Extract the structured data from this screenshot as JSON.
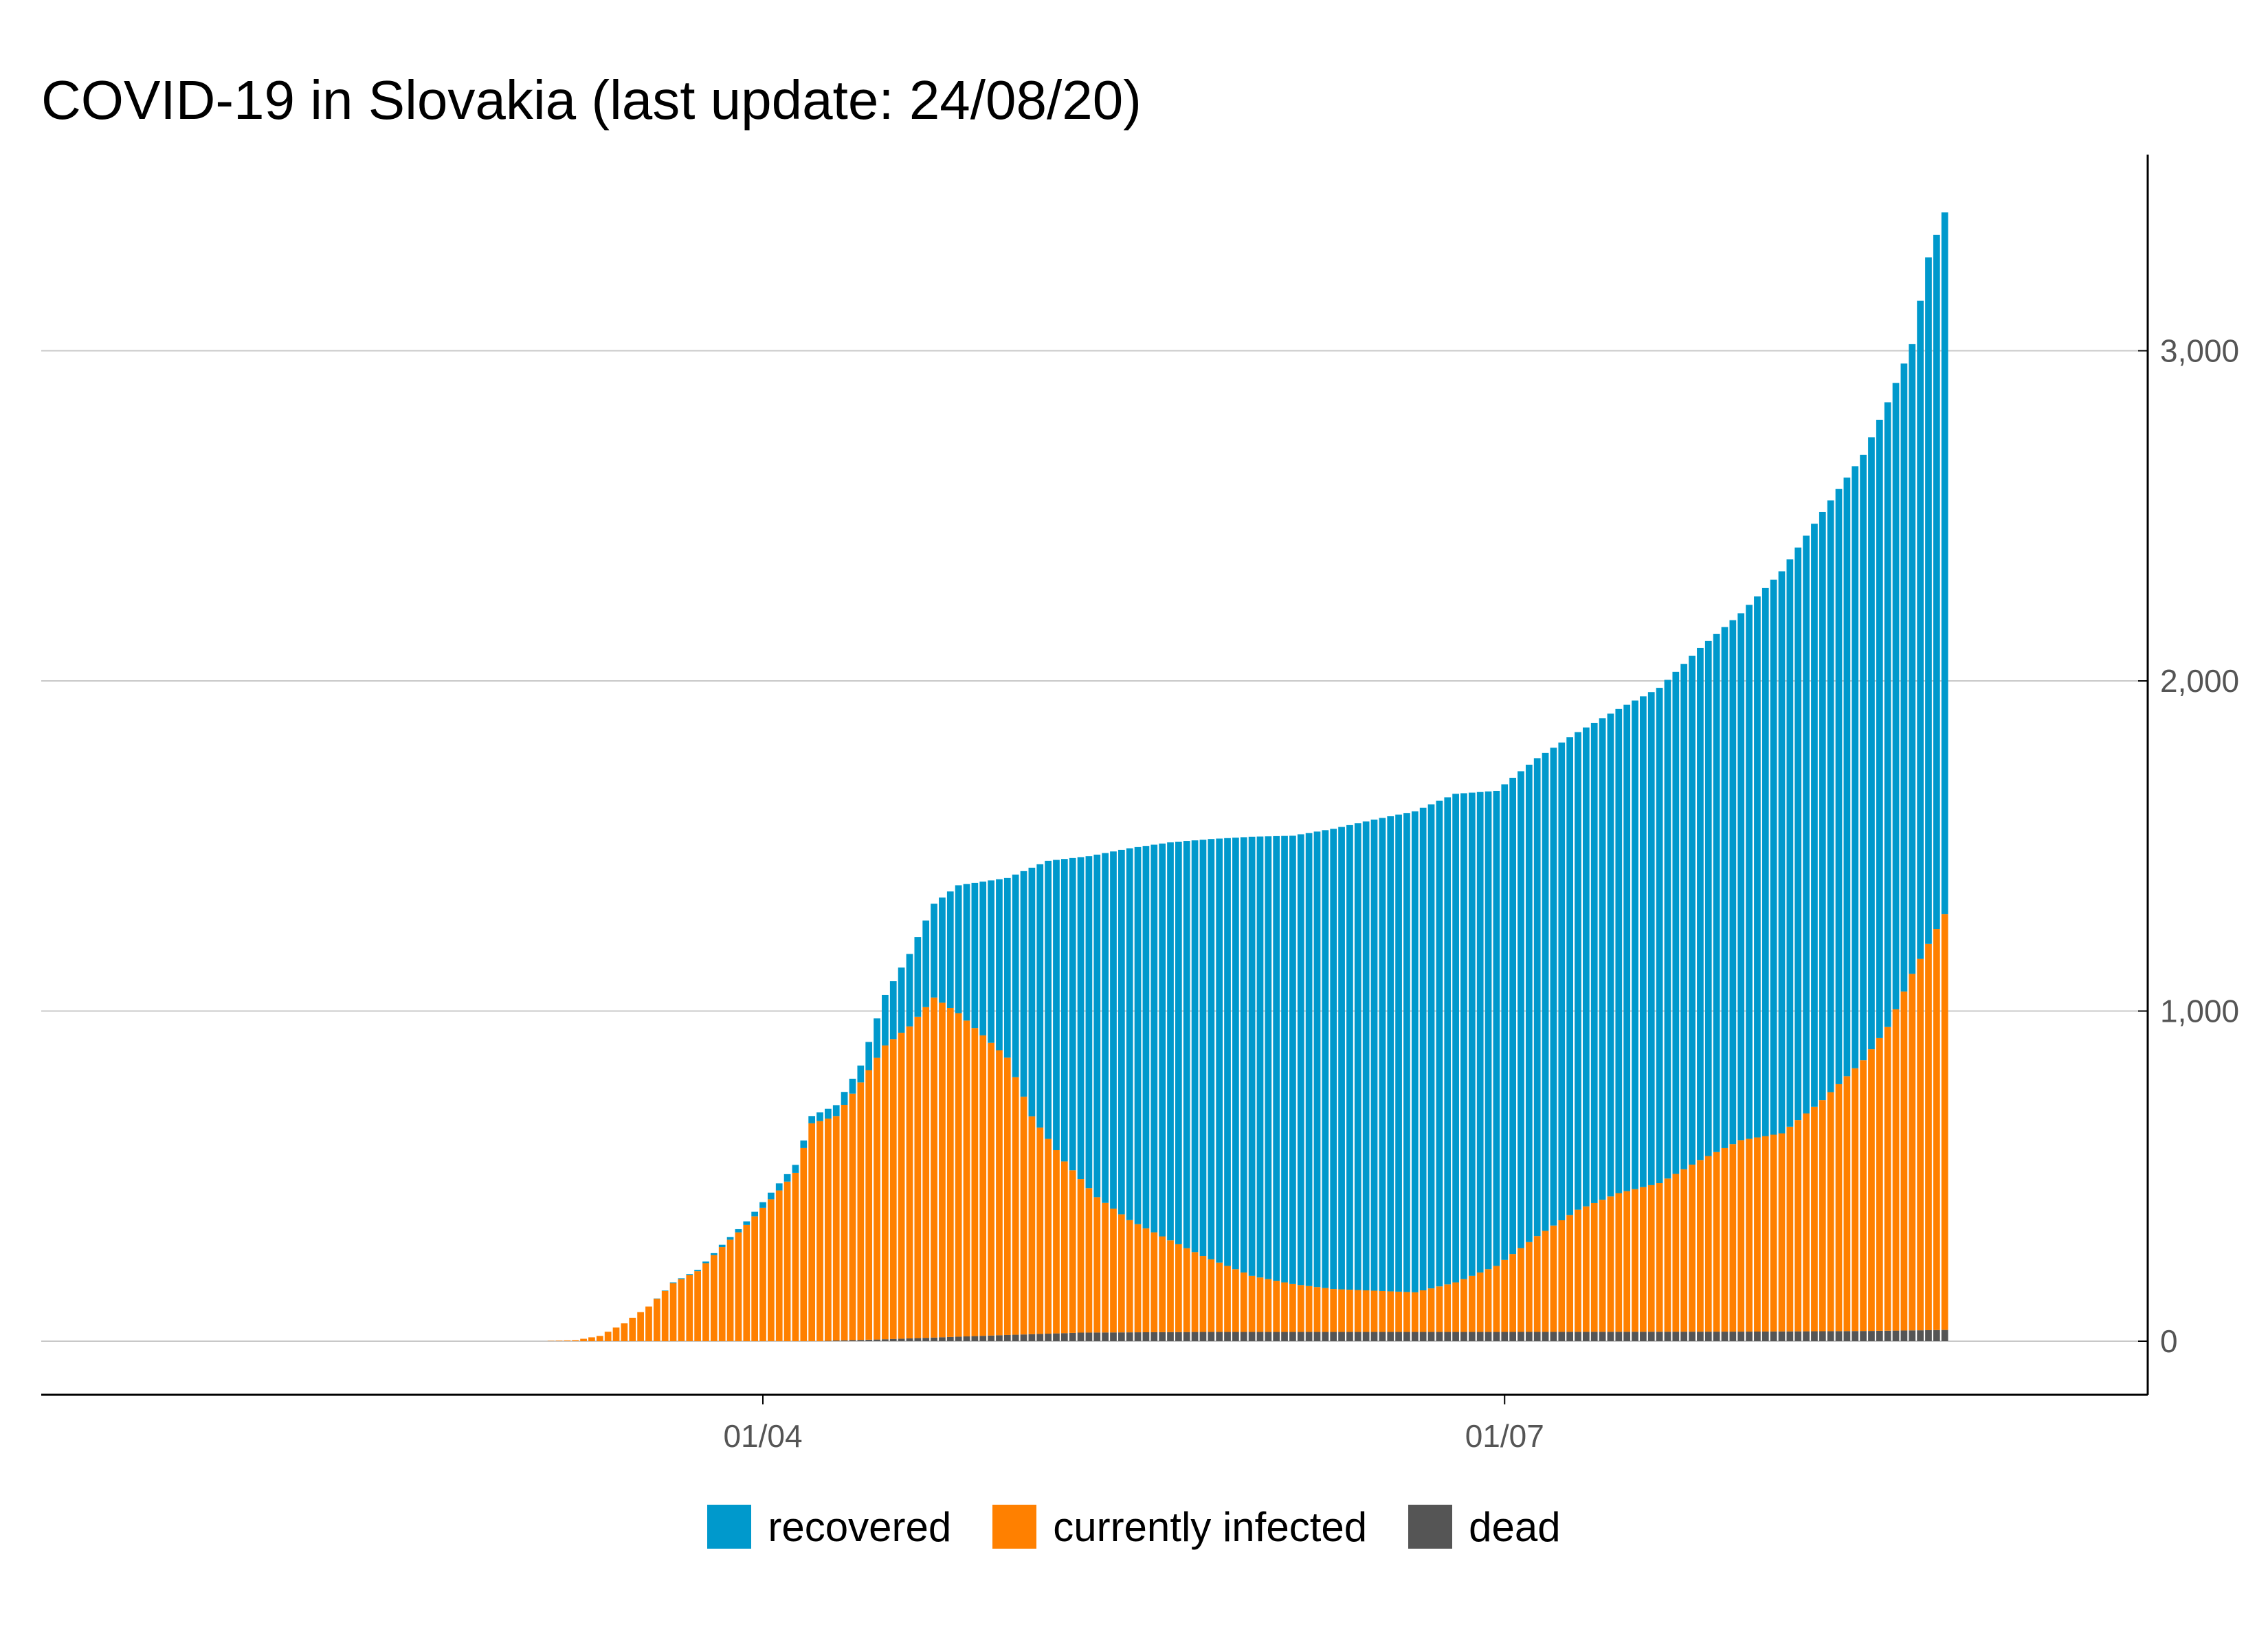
{
  "chart_data": {
    "type": "bar",
    "stacked": true,
    "title": "COVID-19 in Slovakia (last update: 24/08/20)",
    "xlabel": "",
    "ylabel": "",
    "y_axis_position": "right",
    "ylim": [
      0,
      3450
    ],
    "y_ticks": [
      0,
      1000,
      2000,
      3000
    ],
    "y_tick_labels": [
      "0",
      "1,000",
      "2,000",
      "3,000"
    ],
    "x_ticks": [
      {
        "date": "2020-04-01",
        "label": "01/04"
      },
      {
        "date": "2020-07-01",
        "label": "01/07"
      }
    ],
    "x_start": "2020-01-22",
    "x_end": "2020-08-24",
    "grid": "horizontal",
    "legend_position": "bottom",
    "series": [
      {
        "name": "recovered",
        "color": "#0099CC"
      },
      {
        "name": "currently infected",
        "color": "#FF8000"
      },
      {
        "name": "dead",
        "color": "#555555"
      }
    ],
    "totals_anchors": [
      [
        "2020-03-06",
        1
      ],
      [
        "2020-03-09",
        3
      ],
      [
        "2020-03-12",
        16
      ],
      [
        "2020-03-15",
        54
      ],
      [
        "2020-03-18",
        105
      ],
      [
        "2020-03-21",
        178
      ],
      [
        "2020-03-24",
        216
      ],
      [
        "2020-03-27",
        292
      ],
      [
        "2020-03-30",
        363
      ],
      [
        "2020-04-02",
        450
      ],
      [
        "2020-04-05",
        534
      ],
      [
        "2020-04-07",
        682
      ],
      [
        "2020-04-10",
        715
      ],
      [
        "2020-04-13",
        835
      ],
      [
        "2020-04-16",
        1049
      ],
      [
        "2020-04-19",
        1173
      ],
      [
        "2020-04-22",
        1325
      ],
      [
        "2020-04-25",
        1381
      ],
      [
        "2020-05-01",
        1403
      ],
      [
        "2020-05-06",
        1455
      ],
      [
        "2020-05-11",
        1469
      ],
      [
        "2020-05-16",
        1493
      ],
      [
        "2020-05-21",
        1511
      ],
      [
        "2020-05-26",
        1521
      ],
      [
        "2020-05-31",
        1528
      ],
      [
        "2020-06-05",
        1531
      ],
      [
        "2020-06-10",
        1552
      ],
      [
        "2020-06-15",
        1580
      ],
      [
        "2020-06-20",
        1605
      ],
      [
        "2020-06-25",
        1658
      ],
      [
        "2020-06-30",
        1667
      ],
      [
        "2020-07-05",
        1766
      ],
      [
        "2020-07-10",
        1845
      ],
      [
        "2020-07-15",
        1915
      ],
      [
        "2020-07-20",
        1979
      ],
      [
        "2020-07-25",
        2100
      ],
      [
        "2020-07-30",
        2205
      ],
      [
        "2020-08-04",
        2332
      ],
      [
        "2020-08-09",
        2512
      ],
      [
        "2020-08-14",
        2685
      ],
      [
        "2020-08-17",
        2844
      ],
      [
        "2020-08-20",
        3020
      ],
      [
        "2020-08-22",
        3283
      ],
      [
        "2020-08-24",
        3419
      ]
    ],
    "currently_infected_anchors": [
      [
        "2020-03-06",
        1
      ],
      [
        "2020-03-09",
        3
      ],
      [
        "2020-03-12",
        16
      ],
      [
        "2020-03-15",
        54
      ],
      [
        "2020-03-18",
        105
      ],
      [
        "2020-03-21",
        176
      ],
      [
        "2020-03-24",
        212
      ],
      [
        "2020-03-27",
        285
      ],
      [
        "2020-03-30",
        352
      ],
      [
        "2020-04-02",
        430
      ],
      [
        "2020-04-05",
        510
      ],
      [
        "2020-04-07",
        660
      ],
      [
        "2020-04-10",
        680
      ],
      [
        "2020-04-13",
        780
      ],
      [
        "2020-04-16",
        890
      ],
      [
        "2020-04-19",
        945
      ],
      [
        "2020-04-22",
        1030
      ],
      [
        "2020-04-25",
        980
      ],
      [
        "2020-05-01",
        840
      ],
      [
        "2020-05-04",
        660
      ],
      [
        "2020-05-08",
        520
      ],
      [
        "2020-05-12",
        410
      ],
      [
        "2020-05-16",
        340
      ],
      [
        "2020-05-20",
        290
      ],
      [
        "2020-05-25",
        230
      ],
      [
        "2020-05-31",
        170
      ],
      [
        "2020-06-05",
        145
      ],
      [
        "2020-06-10",
        130
      ],
      [
        "2020-06-15",
        125
      ],
      [
        "2020-06-20",
        120
      ],
      [
        "2020-06-25",
        150
      ],
      [
        "2020-06-30",
        200
      ],
      [
        "2020-07-05",
        290
      ],
      [
        "2020-07-10",
        370
      ],
      [
        "2020-07-15",
        420
      ],
      [
        "2020-07-20",
        450
      ],
      [
        "2020-07-25",
        520
      ],
      [
        "2020-07-30",
        580
      ],
      [
        "2020-08-04",
        600
      ],
      [
        "2020-08-09",
        700
      ],
      [
        "2020-08-14",
        820
      ],
      [
        "2020-08-17",
        920
      ],
      [
        "2020-08-20",
        1080
      ],
      [
        "2020-08-22",
        1170
      ],
      [
        "2020-08-24",
        1260
      ]
    ],
    "dead_anchors": [
      [
        "2020-04-08",
        0
      ],
      [
        "2020-04-10",
        2
      ],
      [
        "2020-04-15",
        5
      ],
      [
        "2020-04-22",
        11
      ],
      [
        "2020-04-30",
        18
      ],
      [
        "2020-05-10",
        26
      ],
      [
        "2020-05-25",
        28
      ],
      [
        "2020-06-30",
        28
      ],
      [
        "2020-07-31",
        29
      ],
      [
        "2020-08-15",
        31
      ],
      [
        "2020-08-24",
        34
      ]
    ]
  },
  "legend": {
    "items": [
      {
        "label": "recovered",
        "color": "#0099CC"
      },
      {
        "label": "currently infected",
        "color": "#FF8000"
      },
      {
        "label": "dead",
        "color": "#555555"
      }
    ]
  }
}
